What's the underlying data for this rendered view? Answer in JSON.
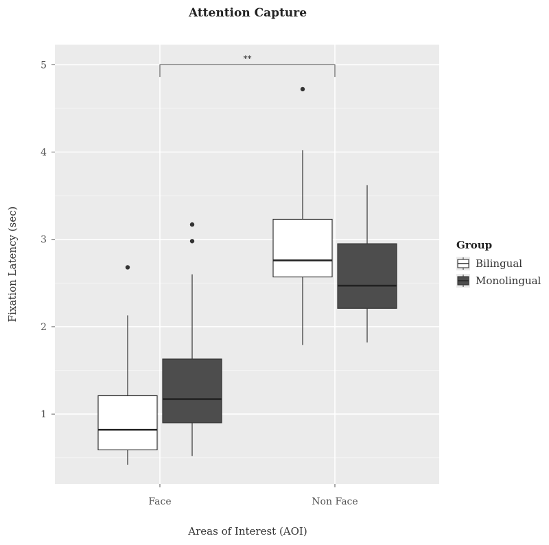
{
  "chart_data": {
    "type": "boxplot",
    "title": "Attention Capture",
    "xlabel": "Areas of Interest (AOI)",
    "ylabel": "Fixation Latency (sec)",
    "categories": [
      "Face",
      "Non Face"
    ],
    "yticks": [
      "1",
      "2",
      "3",
      "4",
      "5"
    ],
    "ylim": [
      0.2,
      5.23
    ],
    "grid": true,
    "legend": {
      "title": "Group",
      "position": "right",
      "entries": [
        "Bilingual",
        "Monolingual"
      ]
    },
    "series": [
      {
        "name": "Bilingual",
        "color": "#ffffff",
        "boxes": [
          {
            "category": "Face",
            "whisker_low": 0.42,
            "q1": 0.59,
            "median": 0.82,
            "q3": 1.21,
            "whisker_high": 2.13,
            "outliers": [
              2.68
            ]
          },
          {
            "category": "Non Face",
            "whisker_low": 1.79,
            "q1": 2.57,
            "median": 2.76,
            "q3": 3.23,
            "whisker_high": 4.02,
            "outliers": [
              4.72
            ]
          }
        ]
      },
      {
        "name": "Monolingual",
        "color": "#4d4d4d",
        "boxes": [
          {
            "category": "Face",
            "whisker_low": 0.52,
            "q1": 0.9,
            "median": 1.17,
            "q3": 1.63,
            "whisker_high": 2.6,
            "outliers": [
              2.98,
              3.17
            ]
          },
          {
            "category": "Non Face",
            "whisker_low": 1.82,
            "q1": 2.21,
            "median": 2.47,
            "q3": 2.95,
            "whisker_high": 3.62,
            "outliers": []
          }
        ]
      }
    ],
    "annotations": [
      {
        "type": "significance",
        "label": "**",
        "from": "Face",
        "to": "Non Face",
        "y": 5.0,
        "y_end": 4.86
      }
    ]
  }
}
